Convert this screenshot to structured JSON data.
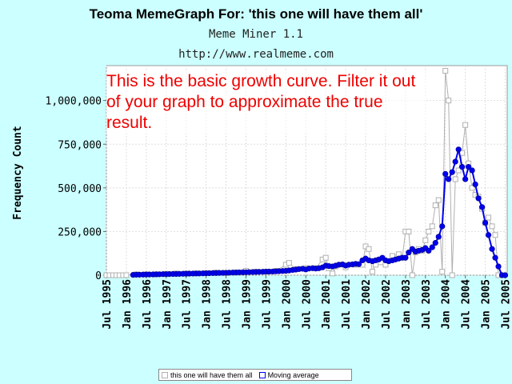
{
  "header": {
    "title": "Teoma MemeGraph For: 'this one will have them all'",
    "subtitle": "Meme Miner 1.1",
    "url": "http://www.realmeme.com"
  },
  "chart_data": {
    "type": "line",
    "ylabel": "Frequency Count",
    "ylim": [
      0,
      1200000
    ],
    "yticks": [
      0,
      250000,
      500000,
      750000,
      1000000
    ],
    "ytick_labels": [
      "0",
      "250,000",
      "500,000",
      "750,000",
      "1,000,000"
    ],
    "xlim": [
      1995.5,
      2005.55
    ],
    "xtick_labels": [
      "Jul 1995",
      "Jan 1996",
      "Jul 1996",
      "Jan 1997",
      "Jul 1997",
      "Jan 1998",
      "Jul 1998",
      "Jan 1999",
      "Jul 1999",
      "Jan 2000",
      "Jul 2000",
      "Jan 2001",
      "Jul 2001",
      "Jan 2002",
      "Jul 2002",
      "Jan 2003",
      "Jul 2003",
      "Jan 2004",
      "Jul 2004",
      "Jan 2005",
      "Jul 2005"
    ],
    "xtick_values": [
      1995.5,
      1996.0,
      1996.5,
      1997.0,
      1997.5,
      1998.0,
      1998.5,
      1999.0,
      1999.5,
      2000.0,
      2000.5,
      2001.0,
      2001.5,
      2002.0,
      2002.5,
      2003.0,
      2003.5,
      2004.0,
      2004.5,
      2005.0,
      2005.5
    ],
    "grid": true,
    "annotation": "This is the basic growth curve.  Filter it out of your graph to approximate the true result.",
    "legend_position": "bottom-center",
    "series": [
      {
        "name": "this one will have them all",
        "color": "#b0b0b0",
        "marker": "square",
        "x": [
          1995.5,
          1995.58,
          1995.67,
          1995.75,
          1995.83,
          1995.92,
          1996.0,
          1996.25,
          1996.5,
          1996.75,
          1997.0,
          1997.25,
          1997.5,
          1997.75,
          1998.0,
          1998.25,
          1998.5,
          1998.75,
          1999.0,
          1999.25,
          1999.5,
          1999.75,
          2000.0,
          2000.08,
          2000.25,
          2000.5,
          2000.75,
          2000.92,
          2001.0,
          2001.08,
          2001.17,
          2001.25,
          2001.5,
          2001.75,
          2001.92,
          2002.0,
          2002.08,
          2002.17,
          2002.25,
          2002.5,
          2002.67,
          2002.83,
          2002.92,
          2003.0,
          2003.08,
          2003.17,
          2003.25,
          2003.33,
          2003.42,
          2003.5,
          2003.58,
          2003.67,
          2003.75,
          2003.83,
          2003.92,
          2004.0,
          2004.08,
          2004.17,
          2004.25,
          2004.33,
          2004.42,
          2004.5,
          2004.58,
          2004.67,
          2004.75,
          2004.83,
          2004.92,
          2005.0,
          2005.08,
          2005.17,
          2005.25,
          2005.33,
          2005.42
        ],
        "values": [
          0,
          0,
          0,
          0,
          0,
          0,
          0,
          5000,
          5000,
          5000,
          8000,
          10000,
          10000,
          10000,
          12000,
          15000,
          12000,
          15000,
          25000,
          20000,
          20000,
          25000,
          60000,
          70000,
          35000,
          40000,
          40000,
          90000,
          100000,
          40000,
          10000,
          50000,
          45000,
          60000,
          60000,
          165000,
          150000,
          20000,
          60000,
          60000,
          110000,
          120000,
          100000,
          250000,
          250000,
          0,
          130000,
          150000,
          140000,
          200000,
          250000,
          280000,
          400000,
          430000,
          20000,
          1170000,
          1000000,
          0,
          550000,
          600000,
          700000,
          860000,
          640000,
          500000,
          460000,
          450000,
          380000,
          300000,
          330000,
          280000,
          230000,
          0,
          0
        ]
      },
      {
        "name": "Moving average",
        "color": "#0000ee",
        "marker": "circle",
        "x": [
          1996.17,
          1996.25,
          1996.33,
          1996.42,
          1996.5,
          1996.58,
          1996.67,
          1996.75,
          1996.83,
          1996.92,
          1997.0,
          1997.08,
          1997.17,
          1997.25,
          1997.33,
          1997.42,
          1997.5,
          1997.58,
          1997.67,
          1997.75,
          1997.83,
          1997.92,
          1998.0,
          1998.08,
          1998.17,
          1998.25,
          1998.33,
          1998.42,
          1998.5,
          1998.58,
          1998.67,
          1998.75,
          1998.83,
          1998.92,
          1999.0,
          1999.08,
          1999.17,
          1999.25,
          1999.33,
          1999.42,
          1999.5,
          1999.58,
          1999.67,
          1999.75,
          1999.83,
          1999.92,
          2000.0,
          2000.08,
          2000.17,
          2000.25,
          2000.33,
          2000.42,
          2000.5,
          2000.58,
          2000.67,
          2000.75,
          2000.83,
          2000.92,
          2001.0,
          2001.08,
          2001.17,
          2001.25,
          2001.33,
          2001.42,
          2001.5,
          2001.58,
          2001.67,
          2001.75,
          2001.83,
          2001.92,
          2002.0,
          2002.08,
          2002.17,
          2002.25,
          2002.33,
          2002.42,
          2002.5,
          2002.58,
          2002.67,
          2002.75,
          2002.83,
          2002.92,
          2003.0,
          2003.08,
          2003.17,
          2003.25,
          2003.33,
          2003.42,
          2003.5,
          2003.58,
          2003.67,
          2003.75,
          2003.83,
          2003.92,
          2004.0,
          2004.08,
          2004.17,
          2004.25,
          2004.33,
          2004.42,
          2004.5,
          2004.58,
          2004.67,
          2004.75,
          2004.83,
          2004.92,
          2005.0,
          2005.08,
          2005.17,
          2005.25,
          2005.33,
          2005.42,
          2005.5
        ],
        "values": [
          2000,
          3000,
          3000,
          3500,
          4000,
          4000,
          4500,
          5000,
          5500,
          6000,
          6000,
          6500,
          7000,
          7000,
          7500,
          8000,
          8500,
          9000,
          9500,
          10000,
          10000,
          10500,
          11000,
          11500,
          12000,
          12500,
          13000,
          13500,
          14000,
          14500,
          15000,
          15500,
          16000,
          16500,
          17000,
          17500,
          18000,
          18500,
          19000,
          19500,
          20000,
          20500,
          21000,
          22000,
          23000,
          24000,
          25000,
          27000,
          30000,
          32000,
          35000,
          37000,
          33000,
          38000,
          40000,
          38000,
          40000,
          45000,
          55000,
          52000,
          50000,
          55000,
          60000,
          62000,
          55000,
          60000,
          62000,
          65000,
          63000,
          85000,
          95000,
          85000,
          80000,
          85000,
          90000,
          100000,
          85000,
          80000,
          85000,
          90000,
          95000,
          100000,
          100000,
          130000,
          150000,
          135000,
          140000,
          145000,
          155000,
          140000,
          160000,
          185000,
          220000,
          280000,
          580000,
          550000,
          590000,
          650000,
          720000,
          620000,
          550000,
          620000,
          600000,
          520000,
          440000,
          390000,
          300000,
          230000,
          150000,
          100000,
          50000,
          0,
          0
        ]
      }
    ]
  }
}
